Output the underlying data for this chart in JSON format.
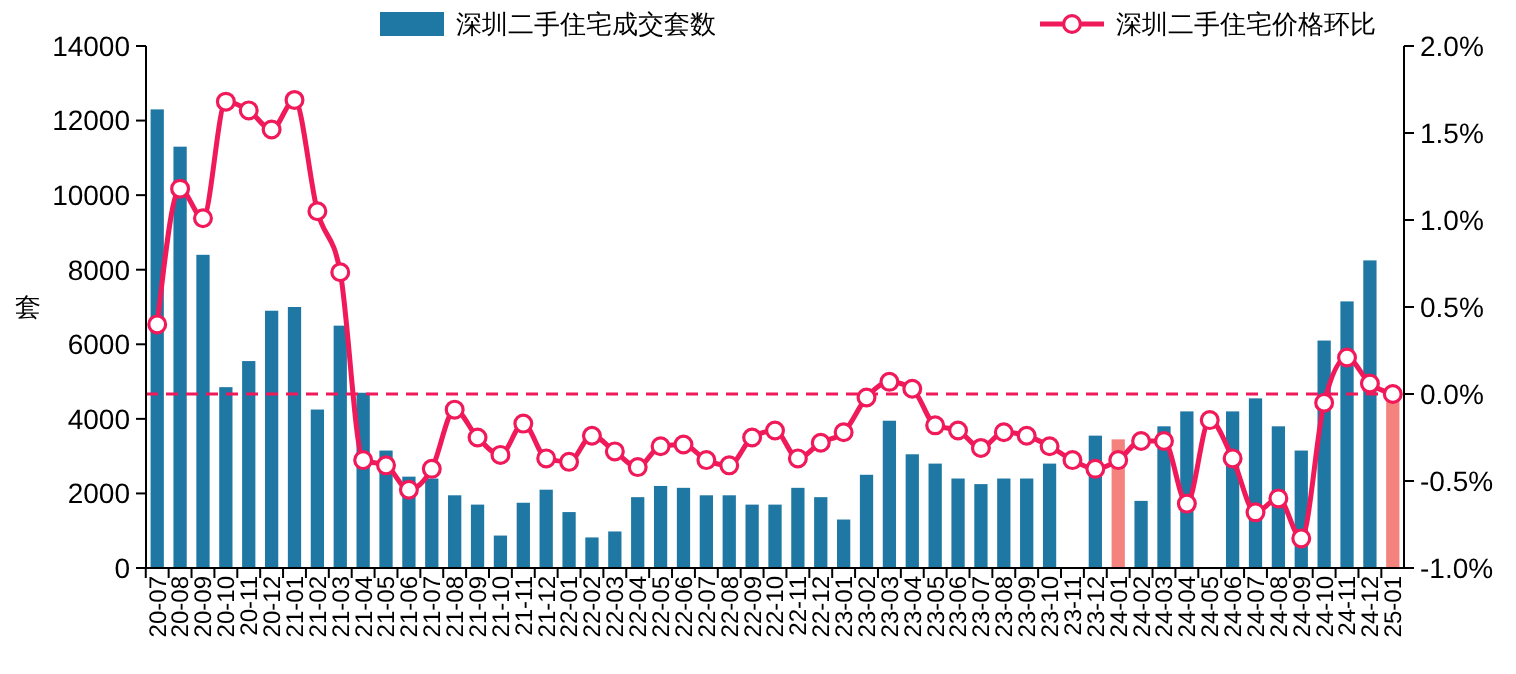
{
  "chart_data": {
    "type": "bar",
    "categories": [
      "20-07",
      "20-08",
      "20-09",
      "20-10",
      "20-11",
      "20-12",
      "21-01",
      "21-02",
      "21-03",
      "21-04",
      "21-05",
      "21-06",
      "21-07",
      "21-08",
      "21-09",
      "21-10",
      "21-11",
      "21-12",
      "22-01",
      "22-02",
      "22-03",
      "22-04",
      "22-05",
      "22-06",
      "22-07",
      "22-08",
      "22-09",
      "22-10",
      "22-11",
      "22-12",
      "23-01",
      "23-02",
      "23-03",
      "23-04",
      "23-05",
      "23-06",
      "23-07",
      "23-08",
      "23-09",
      "23-10",
      "23-11",
      "23-12",
      "24-01",
      "24-02",
      "24-03",
      "24-04",
      "24-05",
      "24-06",
      "24-07",
      "24-08",
      "24-09",
      "24-10",
      "24-11",
      "24-12",
      "25-01"
    ],
    "series": [
      {
        "name": "深圳二手住宅成交套数",
        "color": "#1f78a4",
        "colors": [
          "#1f78a4",
          "#1f78a4",
          "#1f78a4",
          "#1f78a4",
          "#1f78a4",
          "#1f78a4",
          "#1f78a4",
          "#1f78a4",
          "#1f78a4",
          "#1f78a4",
          "#1f78a4",
          "#1f78a4",
          "#1f78a4",
          "#1f78a4",
          "#1f78a4",
          "#1f78a4",
          "#1f78a4",
          "#1f78a4",
          "#1f78a4",
          "#1f78a4",
          "#1f78a4",
          "#1f78a4",
          "#1f78a4",
          "#1f78a4",
          "#1f78a4",
          "#1f78a4",
          "#1f78a4",
          "#1f78a4",
          "#1f78a4",
          "#1f78a4",
          "#1f78a4",
          "#1f78a4",
          "#1f78a4",
          "#1f78a4",
          "#1f78a4",
          "#1f78a4",
          "#1f78a4",
          "#1f78a4",
          "#1f78a4",
          "#1f78a4",
          "#1f78a4",
          "#1f78a4",
          "#f4837d",
          "#1f78a4",
          "#1f78a4",
          "#1f78a4",
          "#1f78a4",
          "#1f78a4",
          "#1f78a4",
          "#1f78a4",
          "#1f78a4",
          "#1f78a4",
          "#1f78a4",
          "#1f78a4",
          "#f4837d"
        ],
        "values": [
          12300,
          11300,
          8400,
          4850,
          5550,
          6900,
          7000,
          4250,
          6500,
          4700,
          3150,
          2450,
          2400,
          1950,
          1700,
          870,
          1750,
          2100,
          1500,
          820,
          980,
          1900,
          2200,
          2150,
          1950,
          1950,
          1700,
          1700,
          2150,
          1900,
          1300,
          2500,
          3950,
          3050,
          2800,
          2400,
          2250,
          2400,
          2400,
          2800,
          null,
          3550,
          3450,
          1800,
          3800,
          4200,
          null,
          4200,
          4550,
          3800,
          3150,
          6100,
          7150,
          8250,
          4600
        ]
      },
      {
        "name": "深圳二手住宅价格环比",
        "type": "line",
        "axis": "y2",
        "color": "#f0195a",
        "marker": "circle",
        "values": [
          0.4,
          1.18,
          1.01,
          1.68,
          1.63,
          1.52,
          1.69,
          1.05,
          0.7,
          -0.38,
          -0.41,
          -0.55,
          -0.43,
          -0.09,
          -0.25,
          -0.35,
          -0.17,
          -0.37,
          -0.39,
          -0.24,
          -0.33,
          -0.42,
          -0.3,
          -0.29,
          -0.38,
          -0.41,
          -0.25,
          -0.21,
          -0.37,
          -0.28,
          -0.22,
          -0.02,
          0.07,
          0.03,
          -0.18,
          -0.21,
          -0.31,
          -0.22,
          -0.24,
          -0.3,
          -0.38,
          -0.43,
          -0.38,
          -0.27,
          -0.27,
          -0.63,
          -0.15,
          -0.37,
          -0.68,
          -0.6,
          -0.83,
          -0.05,
          0.21,
          0.06,
          0.0
        ]
      }
    ],
    "ylabel": "套",
    "ylim": [
      0,
      14000
    ],
    "yticks": [
      0,
      2000,
      4000,
      6000,
      8000,
      10000,
      12000,
      14000
    ],
    "y2lim": [
      -1.0,
      2.0
    ],
    "y2ticks": [
      {
        "value": -1.0,
        "label": "-1.0%"
      },
      {
        "value": -0.5,
        "label": "-0.5%"
      },
      {
        "value": 0,
        "label": "0.0%"
      },
      {
        "value": 0.5,
        "label": "0.5%"
      },
      {
        "value": 1.0,
        "label": "1.0%"
      },
      {
        "value": 1.5,
        "label": "1.5%"
      },
      {
        "value": 2.0,
        "label": "2.0%"
      }
    ],
    "ref_lines": [
      {
        "axis": "y2",
        "value": 0,
        "color": "#f0195a",
        "line_style": "dashed"
      }
    ],
    "legend": "top",
    "grid": false
  }
}
